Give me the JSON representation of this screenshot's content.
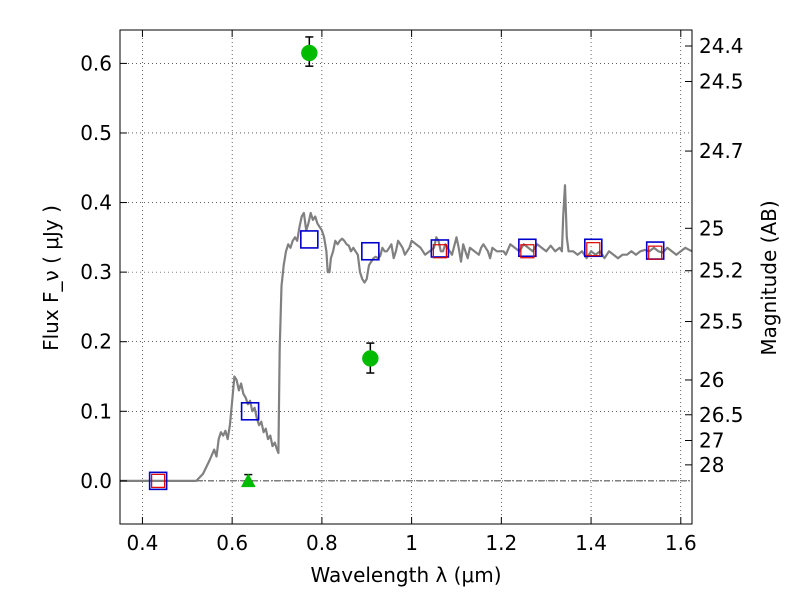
{
  "chart_data": {
    "type": "scatter",
    "xlabel": "Wavelength  λ (μm)",
    "ylabel": "Flux  F_ν  ( μJy )",
    "y2label": "Magnitude (AB)",
    "xlim": [
      0.35,
      1.625
    ],
    "ylim": [
      -0.062,
      0.648
    ],
    "grid": true,
    "x_ticks": [
      {
        "value": 0.4,
        "label": "0.4"
      },
      {
        "value": 0.6,
        "label": "0.6"
      },
      {
        "value": 0.8,
        "label": "0.8"
      },
      {
        "value": 1.0,
        "label": "1"
      },
      {
        "value": 1.2,
        "label": "1.2"
      },
      {
        "value": 1.4,
        "label": "1.4"
      },
      {
        "value": 1.6,
        "label": "1.6"
      }
    ],
    "y_ticks": [
      {
        "value": 0.0,
        "label": "0.0"
      },
      {
        "value": 0.1,
        "label": "0.1"
      },
      {
        "value": 0.2,
        "label": "0.2"
      },
      {
        "value": 0.3,
        "label": "0.3"
      },
      {
        "value": 0.4,
        "label": "0.4"
      },
      {
        "value": 0.5,
        "label": "0.5"
      },
      {
        "value": 0.6,
        "label": "0.6"
      }
    ],
    "magnitude_ticks": [
      {
        "flux": 0.625,
        "label": "24.4"
      },
      {
        "flux": 0.574,
        "label": "24.5"
      },
      {
        "flux": 0.474,
        "label": "24.7"
      },
      {
        "flux": 0.363,
        "label": "25"
      },
      {
        "flux": 0.302,
        "label": "25.2"
      },
      {
        "flux": 0.229,
        "label": "25.5"
      },
      {
        "flux": 0.145,
        "label": "26"
      },
      {
        "flux": 0.095,
        "label": "26.5"
      },
      {
        "flux": 0.058,
        "label": "27"
      },
      {
        "flux": 0.023,
        "label": "28"
      }
    ],
    "colors": {
      "model_line": "#808080",
      "observed": "#00bb00",
      "model_photometry": "#0000cc",
      "inner_squares": "#dd0000",
      "error_bars": "#000000"
    },
    "series": [
      {
        "kind": "line",
        "points": [
          [
            0.35,
            0.0
          ],
          [
            0.52,
            0.0
          ],
          [
            0.535,
            0.01
          ],
          [
            0.55,
            0.03
          ],
          [
            0.56,
            0.045
          ],
          [
            0.565,
            0.035
          ],
          [
            0.57,
            0.06
          ],
          [
            0.575,
            0.07
          ],
          [
            0.58,
            0.065
          ],
          [
            0.585,
            0.072
          ],
          [
            0.59,
            0.06
          ],
          [
            0.595,
            0.08
          ],
          [
            0.6,
            0.115
          ],
          [
            0.605,
            0.15
          ],
          [
            0.61,
            0.145
          ],
          [
            0.615,
            0.13
          ],
          [
            0.62,
            0.14
          ],
          [
            0.625,
            0.125
          ],
          [
            0.63,
            0.12
          ],
          [
            0.635,
            0.11
          ],
          [
            0.64,
            0.115
          ],
          [
            0.645,
            0.1
          ],
          [
            0.65,
            0.105
          ],
          [
            0.655,
            0.09
          ],
          [
            0.66,
            0.08
          ],
          [
            0.665,
            0.085
          ],
          [
            0.67,
            0.07
          ],
          [
            0.675,
            0.075
          ],
          [
            0.68,
            0.06
          ],
          [
            0.685,
            0.065
          ],
          [
            0.69,
            0.05
          ],
          [
            0.695,
            0.055
          ],
          [
            0.7,
            0.045
          ],
          [
            0.703,
            0.04
          ],
          [
            0.706,
            0.19
          ],
          [
            0.71,
            0.28
          ],
          [
            0.715,
            0.31
          ],
          [
            0.72,
            0.33
          ],
          [
            0.725,
            0.34
          ],
          [
            0.73,
            0.335
          ],
          [
            0.735,
            0.345
          ],
          [
            0.74,
            0.35
          ],
          [
            0.745,
            0.345
          ],
          [
            0.75,
            0.365
          ],
          [
            0.755,
            0.38
          ],
          [
            0.76,
            0.385
          ],
          [
            0.765,
            0.36
          ],
          [
            0.77,
            0.37
          ],
          [
            0.775,
            0.385
          ],
          [
            0.78,
            0.375
          ],
          [
            0.785,
            0.38
          ],
          [
            0.79,
            0.37
          ],
          [
            0.795,
            0.365
          ],
          [
            0.8,
            0.36
          ],
          [
            0.805,
            0.35
          ],
          [
            0.81,
            0.33
          ],
          [
            0.813,
            0.3
          ],
          [
            0.817,
            0.3
          ],
          [
            0.82,
            0.32
          ],
          [
            0.825,
            0.33
          ],
          [
            0.83,
            0.345
          ],
          [
            0.835,
            0.34
          ],
          [
            0.84,
            0.345
          ],
          [
            0.845,
            0.348
          ],
          [
            0.85,
            0.345
          ],
          [
            0.855,
            0.34
          ],
          [
            0.86,
            0.338
          ],
          [
            0.865,
            0.33
          ],
          [
            0.87,
            0.335
          ],
          [
            0.875,
            0.33
          ],
          [
            0.88,
            0.325
          ],
          [
            0.885,
            0.3
          ],
          [
            0.89,
            0.29
          ],
          [
            0.895,
            0.285
          ],
          [
            0.9,
            0.29
          ],
          [
            0.905,
            0.31
          ],
          [
            0.91,
            0.315
          ],
          [
            0.915,
            0.32
          ],
          [
            0.92,
            0.322
          ],
          [
            0.925,
            0.32
          ],
          [
            0.93,
            0.323
          ],
          [
            0.935,
            0.335
          ],
          [
            0.94,
            0.33
          ],
          [
            0.945,
            0.33
          ],
          [
            0.95,
            0.335
          ],
          [
            0.955,
            0.34
          ],
          [
            0.96,
            0.32
          ],
          [
            0.965,
            0.33
          ],
          [
            0.97,
            0.345
          ],
          [
            0.975,
            0.34
          ],
          [
            0.98,
            0.335
          ],
          [
            0.985,
            0.325
          ],
          [
            0.99,
            0.33
          ],
          [
            0.995,
            0.335
          ],
          [
            1.0,
            0.345
          ],
          [
            1.01,
            0.34
          ],
          [
            1.02,
            0.335
          ],
          [
            1.03,
            0.325
          ],
          [
            1.04,
            0.33
          ],
          [
            1.05,
            0.335
          ],
          [
            1.055,
            0.35
          ],
          [
            1.06,
            0.345
          ],
          [
            1.065,
            0.33
          ],
          [
            1.07,
            0.33
          ],
          [
            1.075,
            0.34
          ],
          [
            1.08,
            0.335
          ],
          [
            1.085,
            0.33
          ],
          [
            1.09,
            0.325
          ],
          [
            1.1,
            0.35
          ],
          [
            1.105,
            0.335
          ],
          [
            1.11,
            0.315
          ],
          [
            1.115,
            0.34
          ],
          [
            1.12,
            0.33
          ],
          [
            1.125,
            0.32
          ],
          [
            1.13,
            0.335
          ],
          [
            1.14,
            0.33
          ],
          [
            1.15,
            0.325
          ],
          [
            1.155,
            0.335
          ],
          [
            1.16,
            0.34
          ],
          [
            1.17,
            0.33
          ],
          [
            1.175,
            0.32
          ],
          [
            1.18,
            0.335
          ],
          [
            1.19,
            0.33
          ],
          [
            1.2,
            0.33
          ],
          [
            1.205,
            0.33
          ],
          [
            1.21,
            0.325
          ],
          [
            1.22,
            0.34
          ],
          [
            1.23,
            0.335
          ],
          [
            1.24,
            0.33
          ],
          [
            1.25,
            0.34
          ],
          [
            1.26,
            0.335
          ],
          [
            1.27,
            0.33
          ],
          [
            1.28,
            0.34
          ],
          [
            1.29,
            0.335
          ],
          [
            1.3,
            0.33
          ],
          [
            1.31,
            0.338
          ],
          [
            1.32,
            0.33
          ],
          [
            1.33,
            0.335
          ],
          [
            1.335,
            0.33
          ],
          [
            1.338,
            0.38
          ],
          [
            1.342,
            0.425
          ],
          [
            1.346,
            0.35
          ],
          [
            1.35,
            0.33
          ],
          [
            1.36,
            0.33
          ],
          [
            1.37,
            0.325
          ],
          [
            1.38,
            0.33
          ],
          [
            1.39,
            0.32
          ],
          [
            1.4,
            0.33
          ],
          [
            1.41,
            0.325
          ],
          [
            1.42,
            0.33
          ],
          [
            1.43,
            0.32
          ],
          [
            1.44,
            0.33
          ],
          [
            1.45,
            0.325
          ],
          [
            1.46,
            0.32
          ],
          [
            1.47,
            0.325
          ],
          [
            1.48,
            0.325
          ],
          [
            1.49,
            0.33
          ],
          [
            1.5,
            0.325
          ],
          [
            1.51,
            0.33
          ],
          [
            1.52,
            0.332
          ],
          [
            1.53,
            0.33
          ],
          [
            1.54,
            0.335
          ],
          [
            1.55,
            0.33
          ],
          [
            1.56,
            0.328
          ],
          [
            1.57,
            0.335
          ],
          [
            1.58,
            0.33
          ],
          [
            1.59,
            0.325
          ],
          [
            1.6,
            0.33
          ],
          [
            1.61,
            0.335
          ],
          [
            1.625,
            0.33
          ]
        ]
      },
      {
        "kind": "model-squares",
        "points": [
          [
            0.435,
            0.0
          ],
          [
            0.64,
            0.1
          ],
          [
            0.772,
            0.347
          ],
          [
            0.908,
            0.33
          ],
          [
            1.063,
            0.334
          ],
          [
            1.258,
            0.335
          ],
          [
            1.405,
            0.335
          ],
          [
            1.543,
            0.331
          ]
        ]
      },
      {
        "kind": "inner-squares",
        "points": [
          [
            0.435,
            0.0
          ],
          [
            1.063,
            0.33
          ],
          [
            1.258,
            0.33
          ],
          [
            1.405,
            0.333
          ],
          [
            1.543,
            0.328
          ]
        ]
      },
      {
        "kind": "observed",
        "points": [
          [
            0.772,
            0.615
          ],
          [
            0.908,
            0.176
          ]
        ],
        "errors": [
          [
            0.772,
            0.596,
            0.638
          ],
          [
            0.908,
            0.155,
            0.198
          ],
          [
            0.636,
            0.0,
            0.009
          ]
        ]
      },
      {
        "kind": "upper-limit",
        "points": [
          [
            0.636,
            0.0
          ]
        ]
      }
    ]
  }
}
